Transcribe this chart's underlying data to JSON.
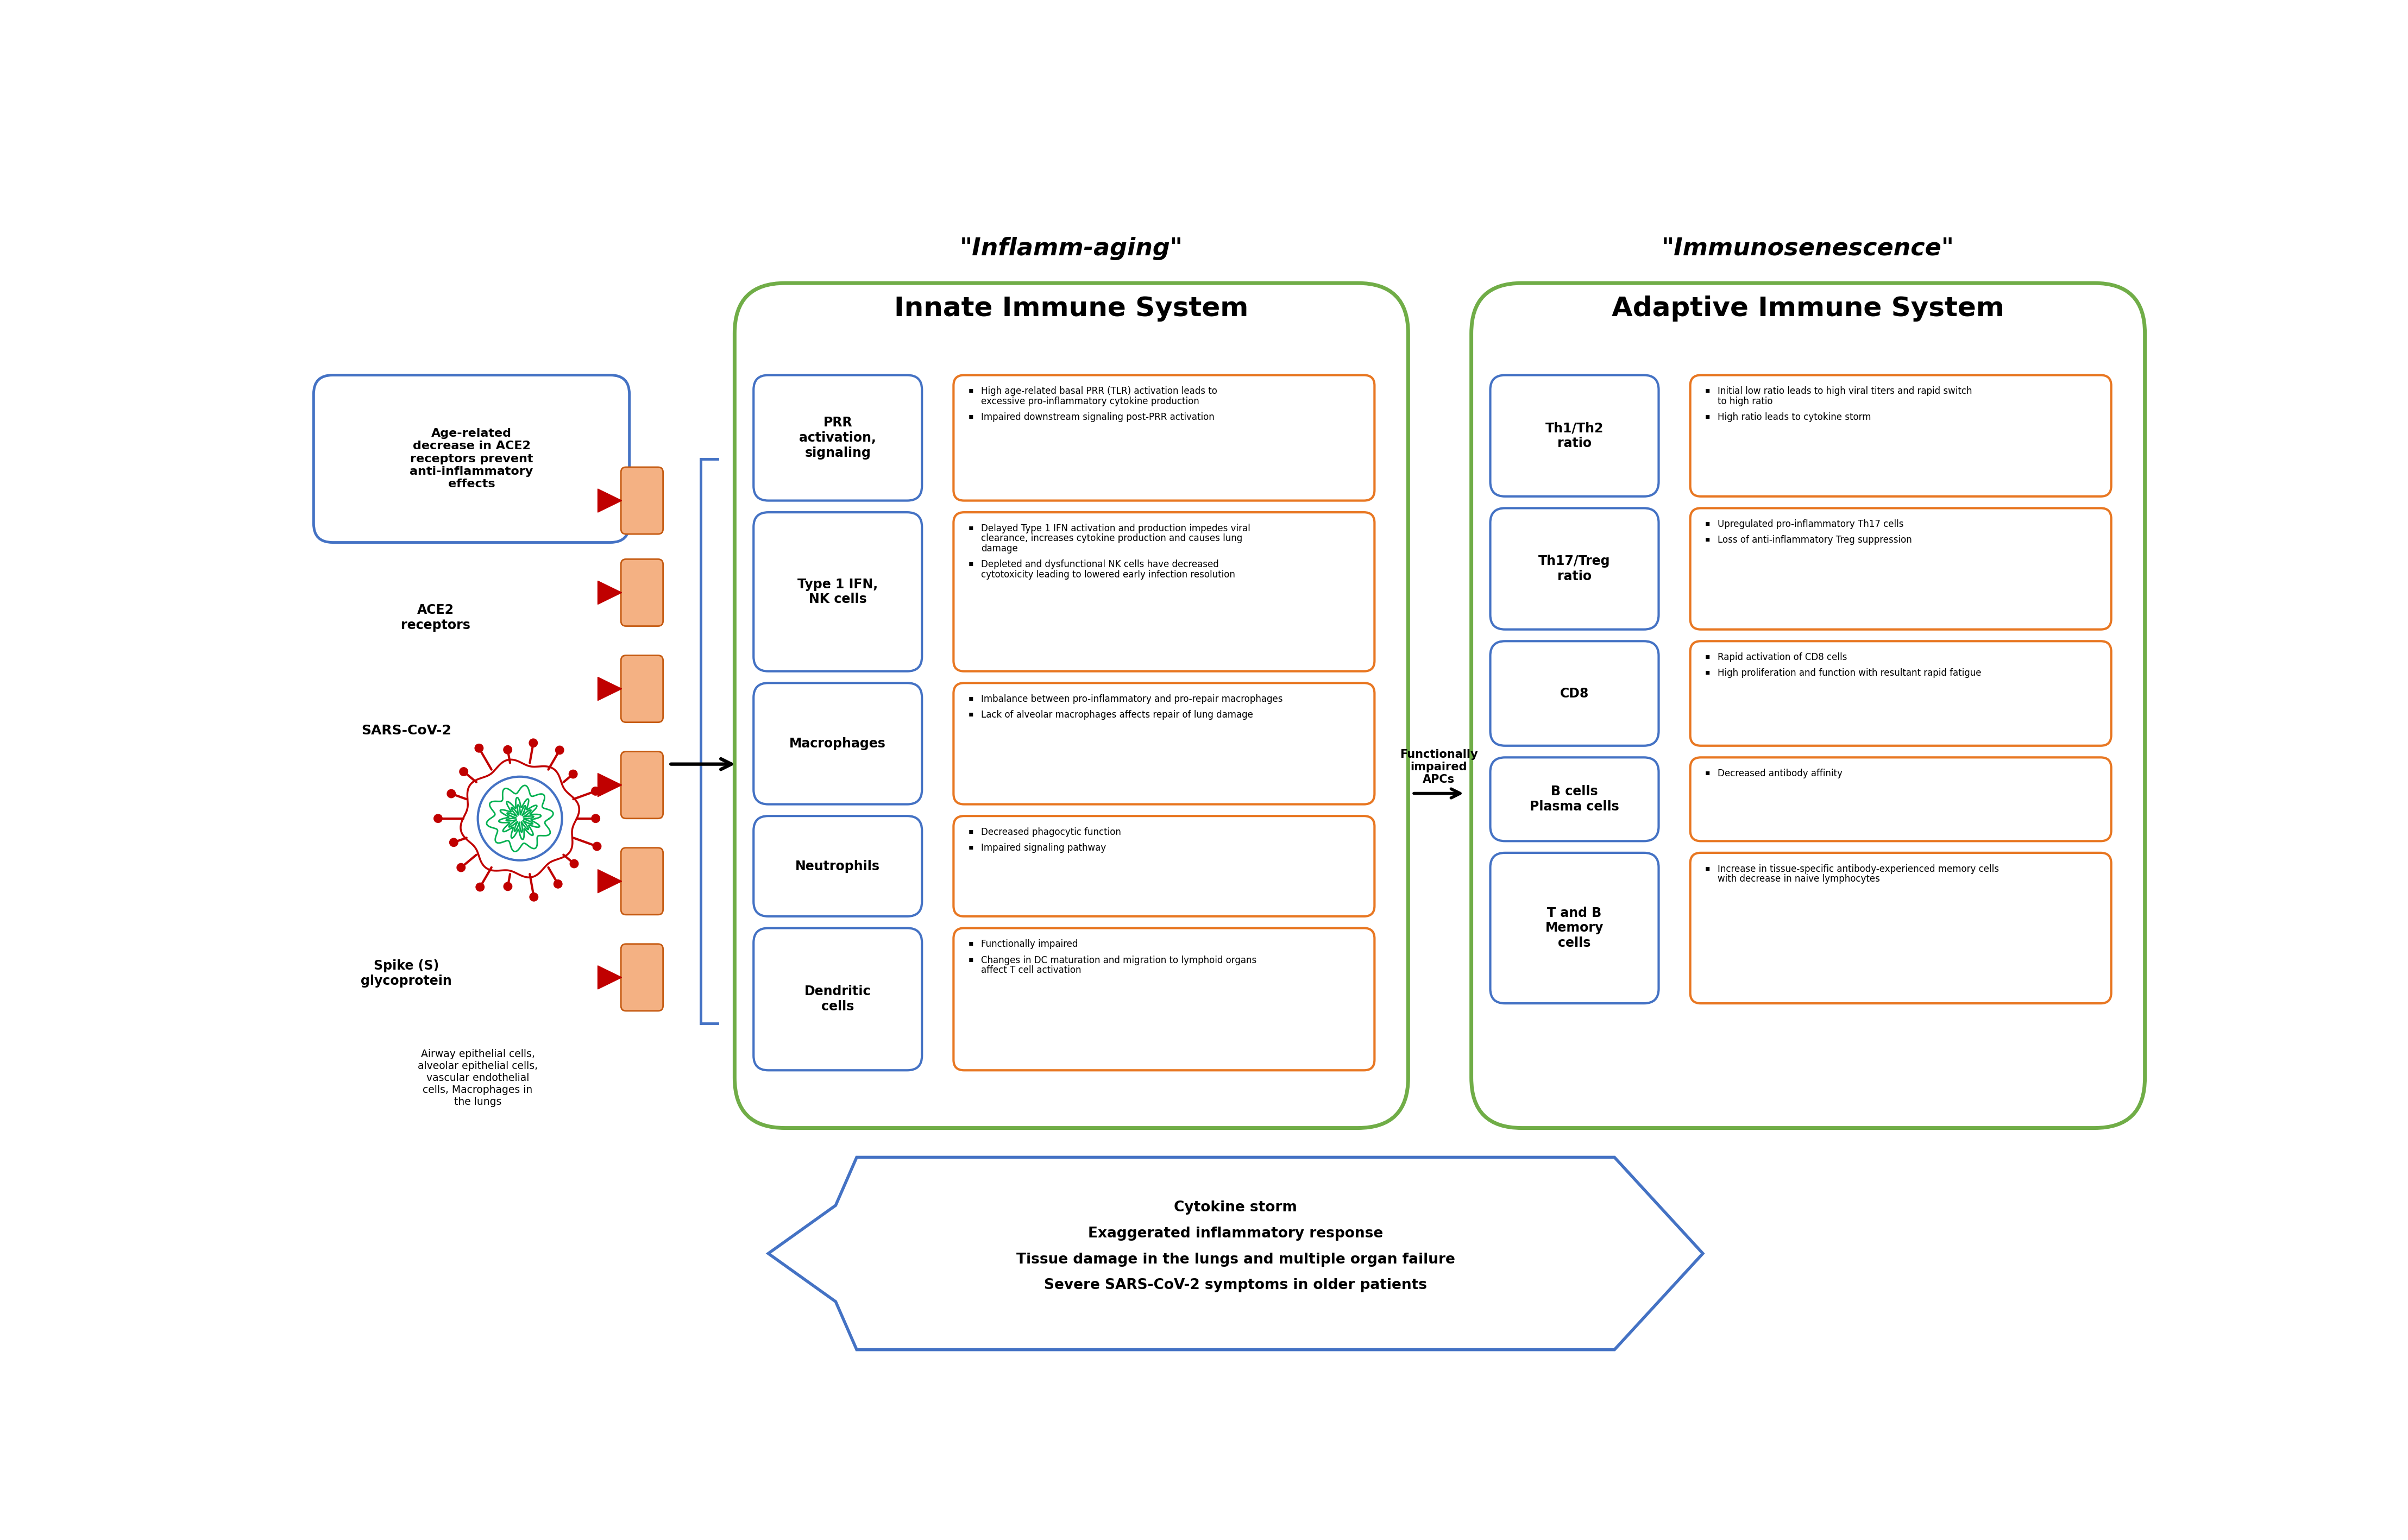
{
  "bg_color": "#ffffff",
  "inflammaging_title": "\"Inflamm-aging\"",
  "inflammaging_subtitle": "Innate Immune System",
  "immunosenescence_title": "\"Immunosenescence\"",
  "immunosenescence_subtitle": "Adaptive Immune System",
  "innate_boxes": [
    {
      "label": "PRR\nactivation,\nsignaling",
      "bullets": [
        "High age-related basal PRR (TLR) activation leads to excessive pro-inflammatory cytokine production",
        "Impaired downstream signaling post-PRR activation"
      ]
    },
    {
      "label": "Type 1 IFN,\nNK cells",
      "bullets": [
        "Delayed Type 1 IFN activation and production impedes viral clearance, increases cytokine production and causes lung damage",
        "Depleted and dysfunctional NK cells have decreased cytotoxicity leading to lowered early infection resolution"
      ]
    },
    {
      "label": "Macrophages",
      "bullets": [
        "Imbalance between pro-inflammatory and pro-repair macrophages",
        "Lack of alveolar macrophages affects repair of lung damage"
      ]
    },
    {
      "label": "Neutrophils",
      "bullets": [
        "Decreased phagocytic function",
        "Impaired signaling pathway"
      ]
    },
    {
      "label": "Dendritic\ncells",
      "bullets": [
        "Functionally impaired",
        "Changes in DC maturation and migration to lymphoid organs affect T cell activation"
      ]
    }
  ],
  "adaptive_boxes": [
    {
      "label": "Th1/Th2\nratio",
      "bullets": [
        "Initial low ratio leads to high viral titers and rapid switch to high ratio",
        "High ratio leads to cytokine storm"
      ]
    },
    {
      "label": "Th17/Treg\nratio",
      "bullets": [
        "Upregulated pro-inflammatory Th17 cells",
        "Loss of anti-inflammatory Treg suppression"
      ]
    },
    {
      "label": "CD8",
      "bullets": [
        "Rapid activation of CD8 cells",
        "High proliferation and function with resultant rapid fatigue"
      ]
    },
    {
      "label": "B cells\nPlasma cells",
      "bullets": [
        "Decreased antibody affinity"
      ]
    },
    {
      "label": "T and B\nMemory\ncells",
      "bullets": [
        "Increase in tissue-specific antibody-experienced memory cells with decrease in naive lymphocytes"
      ]
    }
  ],
  "left_box_text": "Age-related\ndecrease in ACE2\nreceptors prevent\nanti-inflammatory\neffects",
  "ace2_label": "ACE2\nreceptors",
  "sars_label": "SARS-CoV-2",
  "spike_label": "Spike (S)\nglycoprotein",
  "airway_label": "Airway epithelial cells,\nalveolar epithelial cells,\nvascular endothelial\ncells, Macrophages in\nthe lungs",
  "functionally_label": "Functionally\nimpaired\nAPCs",
  "bottom_text_lines": [
    "Cytokine storm",
    "Exaggerated inflammatory response",
    "Tissue damage in the lungs and multiple organ failure",
    "Severe SARS-CoV-2 symptoms in older patients"
  ],
  "orange_color": "#E87722",
  "blue_box_color": "#4472C4",
  "green_outline_color": "#70AD47",
  "left_blue_color": "#4472C4",
  "peach_color": "#F4B183",
  "peach_border_color": "#C55A11",
  "red_color": "#C00000",
  "virus_inner_color": "#00B050",
  "virus_outer_color": "#FF0000",
  "virus_blue_circle": "#4472C4"
}
